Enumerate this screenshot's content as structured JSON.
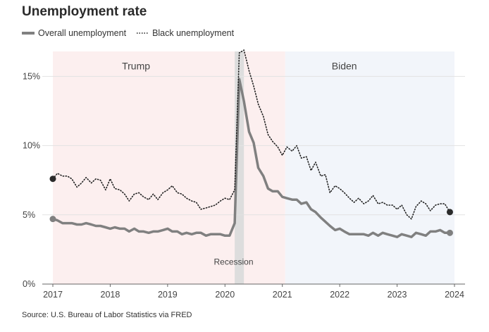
{
  "chart_data": {
    "type": "line",
    "title": "Unemployment rate",
    "source": "Source: U.S. Bureau of Labor Statistics via FRED",
    "xlim": [
      2017.0,
      2024.0
    ],
    "ylim": [
      0,
      16.8
    ],
    "x_ticks": [
      2017,
      2018,
      2019,
      2020,
      2021,
      2022,
      2023,
      2024
    ],
    "x_tick_labels": [
      "2017",
      "2018",
      "2019",
      "2020",
      "2021",
      "2022",
      "2023",
      "2024"
    ],
    "y_ticks": [
      0,
      5,
      10,
      15
    ],
    "y_tick_labels": [
      "0%",
      "5%",
      "10%",
      "15%"
    ],
    "grid": "horizontal",
    "legend": "top-left",
    "annotations": [
      {
        "label": "Trump",
        "x": 2018.45,
        "y": 15.5
      },
      {
        "label": "Biden",
        "x": 2022.08,
        "y": 15.5
      },
      {
        "label": "Recession",
        "x": 2020.15,
        "y": 1.4
      }
    ],
    "shaded_regions": [
      {
        "name": "Trump",
        "start": 2017.0,
        "end": 2021.05,
        "color": "#fcefef"
      },
      {
        "name": "Biden",
        "start": 2021.05,
        "end": 2024.0,
        "color": "#f2f5fa"
      },
      {
        "name": "Recession",
        "start": 2020.17,
        "end": 2020.33,
        "color": "#dddddd"
      }
    ],
    "series": [
      {
        "name": "Overall unemployment",
        "style": "solid",
        "color": "#808080",
        "x": [
          2017.0,
          2017.08,
          2017.17,
          2017.25,
          2017.33,
          2017.42,
          2017.5,
          2017.58,
          2017.67,
          2017.75,
          2017.83,
          2017.92,
          2018.0,
          2018.08,
          2018.17,
          2018.25,
          2018.33,
          2018.42,
          2018.5,
          2018.58,
          2018.67,
          2018.75,
          2018.83,
          2018.92,
          2019.0,
          2019.08,
          2019.17,
          2019.25,
          2019.33,
          2019.42,
          2019.5,
          2019.58,
          2019.67,
          2019.75,
          2019.83,
          2019.92,
          2020.0,
          2020.08,
          2020.17,
          2020.25,
          2020.33,
          2020.42,
          2020.5,
          2020.58,
          2020.67,
          2020.75,
          2020.83,
          2020.92,
          2021.0,
          2021.08,
          2021.17,
          2021.25,
          2021.33,
          2021.42,
          2021.5,
          2021.58,
          2021.67,
          2021.75,
          2021.83,
          2021.92,
          2022.0,
          2022.08,
          2022.17,
          2022.25,
          2022.33,
          2022.42,
          2022.5,
          2022.58,
          2022.67,
          2022.75,
          2022.83,
          2022.92,
          2023.0,
          2023.08,
          2023.17,
          2023.25,
          2023.33,
          2023.42,
          2023.5,
          2023.58,
          2023.67,
          2023.75,
          2023.83,
          2023.92
        ],
        "values": [
          4.7,
          4.6,
          4.4,
          4.4,
          4.4,
          4.3,
          4.3,
          4.4,
          4.3,
          4.2,
          4.2,
          4.1,
          4.0,
          4.1,
          4.0,
          4.0,
          3.8,
          4.0,
          3.8,
          3.8,
          3.7,
          3.8,
          3.8,
          3.9,
          4.0,
          3.8,
          3.8,
          3.6,
          3.7,
          3.6,
          3.7,
          3.7,
          3.5,
          3.6,
          3.6,
          3.6,
          3.5,
          3.5,
          4.4,
          14.8,
          13.2,
          11.0,
          10.2,
          8.4,
          7.8,
          6.9,
          6.7,
          6.7,
          6.3,
          6.2,
          6.1,
          6.1,
          5.8,
          5.9,
          5.4,
          5.2,
          4.8,
          4.5,
          4.2,
          3.9,
          4.0,
          3.8,
          3.6,
          3.6,
          3.6,
          3.6,
          3.5,
          3.7,
          3.5,
          3.7,
          3.6,
          3.5,
          3.4,
          3.6,
          3.5,
          3.4,
          3.7,
          3.6,
          3.5,
          3.8,
          3.8,
          3.9,
          3.7,
          3.7
        ]
      },
      {
        "name": "Black unemployment",
        "style": "dotted",
        "color": "#222222",
        "x": [
          2017.0,
          2017.08,
          2017.17,
          2017.25,
          2017.33,
          2017.42,
          2017.5,
          2017.58,
          2017.67,
          2017.75,
          2017.83,
          2017.92,
          2018.0,
          2018.08,
          2018.17,
          2018.25,
          2018.33,
          2018.42,
          2018.5,
          2018.58,
          2018.67,
          2018.75,
          2018.83,
          2018.92,
          2019.0,
          2019.08,
          2019.17,
          2019.25,
          2019.33,
          2019.42,
          2019.5,
          2019.58,
          2019.67,
          2019.75,
          2019.83,
          2019.92,
          2020.0,
          2020.08,
          2020.17,
          2020.25,
          2020.33,
          2020.42,
          2020.5,
          2020.58,
          2020.67,
          2020.75,
          2020.83,
          2020.92,
          2021.0,
          2021.08,
          2021.17,
          2021.25,
          2021.33,
          2021.42,
          2021.5,
          2021.58,
          2021.67,
          2021.75,
          2021.83,
          2021.92,
          2022.0,
          2022.08,
          2022.17,
          2022.25,
          2022.33,
          2022.42,
          2022.5,
          2022.58,
          2022.67,
          2022.75,
          2022.83,
          2022.92,
          2023.0,
          2023.08,
          2023.17,
          2023.25,
          2023.33,
          2023.42,
          2023.5,
          2023.58,
          2023.67,
          2023.75,
          2023.83,
          2023.92
        ],
        "values": [
          7.6,
          8.0,
          7.8,
          7.8,
          7.6,
          7.0,
          7.3,
          7.7,
          7.3,
          7.6,
          7.5,
          6.8,
          7.6,
          6.9,
          6.8,
          6.5,
          6.0,
          6.5,
          6.6,
          6.3,
          6.1,
          6.5,
          6.1,
          6.6,
          6.8,
          7.1,
          6.6,
          6.5,
          6.2,
          6.0,
          5.9,
          5.4,
          5.5,
          5.6,
          5.7,
          6.0,
          6.2,
          6.1,
          6.8,
          16.7,
          16.9,
          15.4,
          14.3,
          13.0,
          12.1,
          10.8,
          10.3,
          9.9,
          9.3,
          9.9,
          9.6,
          10.0,
          9.1,
          9.2,
          8.2,
          8.8,
          7.8,
          7.9,
          6.6,
          7.1,
          6.9,
          6.6,
          6.2,
          5.9,
          6.2,
          5.8,
          6.0,
          6.4,
          5.8,
          5.9,
          5.7,
          5.7,
          5.4,
          5.7,
          5.0,
          4.7,
          5.6,
          6.0,
          5.8,
          5.3,
          5.7,
          5.8,
          5.8,
          5.2
        ]
      }
    ]
  }
}
